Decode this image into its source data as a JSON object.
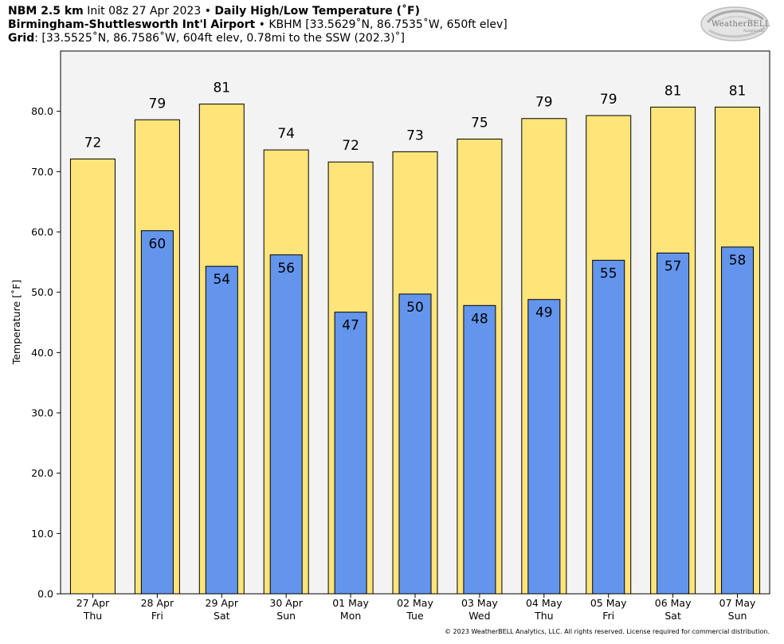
{
  "header": {
    "line1": {
      "model": "NBM 2.5 km",
      "init": "Init 08z 27 Apr 2023",
      "sep": "•",
      "product": "Daily High/Low Temperature (˚F)"
    },
    "line2": {
      "station": "Birmingham-Shuttlesworth Int'l Airport",
      "sep": "•",
      "details": "KBHM [33.5629˚N, 86.7535˚W, 650ft elev]"
    },
    "line3": {
      "label": "Grid",
      "details": ": [33.5525˚N, 86.7586˚W, 604ft elev, 0.78mi to the SSW (202.3)˚]"
    }
  },
  "logo": {
    "text": "WeatherBELL",
    "subtext": "Analytics LLC",
    "icon": "swirl-logo-icon"
  },
  "footer": {
    "copyright": "© 2023 WeatherBELL Analytics, LLC. All rights reserved. License required for commercial distribution."
  },
  "colors": {
    "high": "#FFE47A",
    "low": "#6495ED",
    "plot_bg": "#F3F3F3"
  },
  "chart_data": {
    "type": "bar",
    "ylabel": "Temperature [˚F]",
    "ylim": [
      0,
      90
    ],
    "yticks": [
      "0.0",
      "10.0",
      "20.0",
      "30.0",
      "40.0",
      "50.0",
      "60.0",
      "70.0",
      "80.0"
    ],
    "categories": [
      {
        "date": "27 Apr",
        "day": "Thu"
      },
      {
        "date": "28 Apr",
        "day": "Fri"
      },
      {
        "date": "29 Apr",
        "day": "Sat"
      },
      {
        "date": "30 Apr",
        "day": "Sun"
      },
      {
        "date": "01 May",
        "day": "Mon"
      },
      {
        "date": "02 May",
        "day": "Tue"
      },
      {
        "date": "03 May",
        "day": "Wed"
      },
      {
        "date": "04 May",
        "day": "Thu"
      },
      {
        "date": "05 May",
        "day": "Fri"
      },
      {
        "date": "06 May",
        "day": "Sat"
      },
      {
        "date": "07 May",
        "day": "Sun"
      }
    ],
    "series": [
      {
        "key": "high",
        "values": [
          72.1,
          78.6,
          81.2,
          73.6,
          71.6,
          73.3,
          75.4,
          78.8,
          79.3,
          80.7,
          80.7
        ],
        "labels": [
          "72",
          "79",
          "81",
          "74",
          "72",
          "73",
          "75",
          "79",
          "79",
          "81",
          "81"
        ]
      },
      {
        "key": "low",
        "values": [
          null,
          60.2,
          54.3,
          56.2,
          46.7,
          49.7,
          47.8,
          48.8,
          55.3,
          56.5,
          57.5
        ],
        "labels": [
          "",
          "60",
          "54",
          "56",
          "47",
          "50",
          "48",
          "49",
          "55",
          "57",
          "58"
        ]
      }
    ],
    "grid": false,
    "legend": "none"
  }
}
